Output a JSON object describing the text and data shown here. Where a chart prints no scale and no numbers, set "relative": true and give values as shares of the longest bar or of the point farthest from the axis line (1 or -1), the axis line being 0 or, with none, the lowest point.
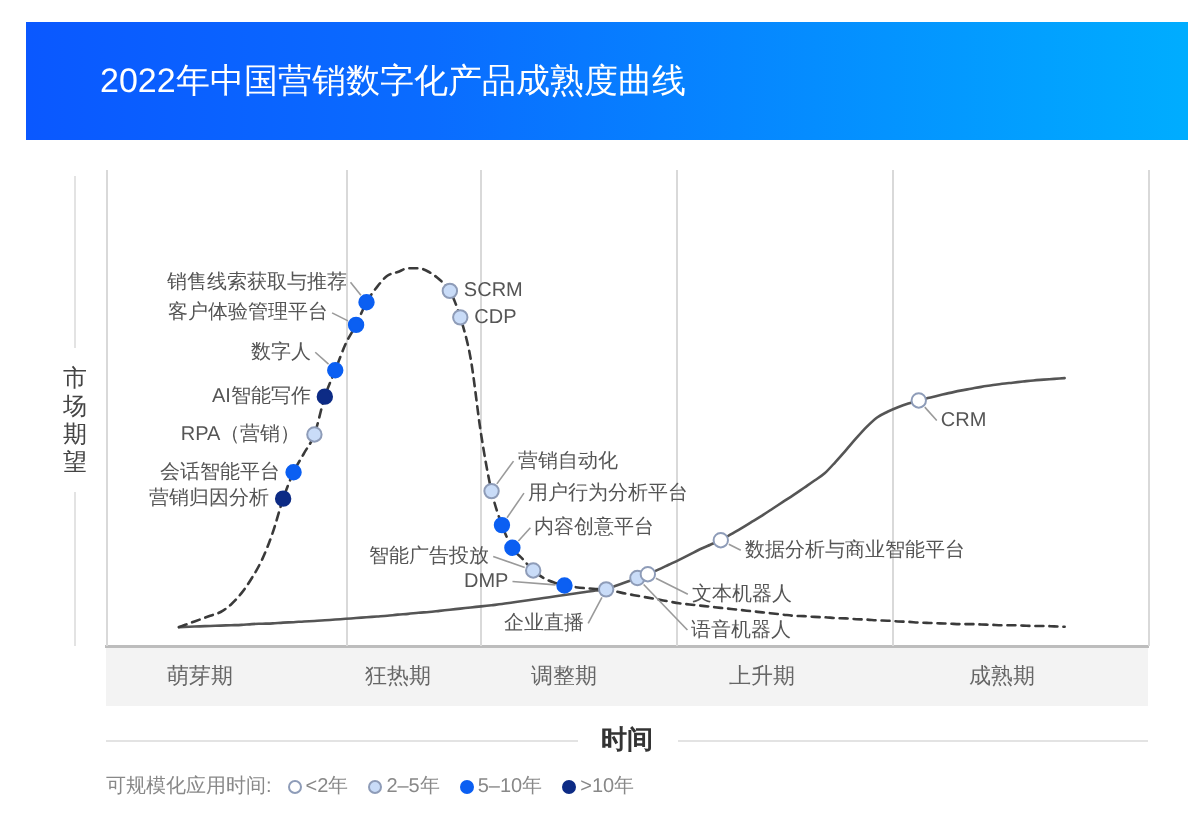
{
  "chart_data": {
    "type": "line",
    "title": "2022年中国营销数字化产品成熟度曲线",
    "xlabel": "时间",
    "ylabel": "市场期望",
    "legend_title": "可规模化应用时间:",
    "legend": "bottom left",
    "relative": true,
    "categories": [
      null,
      null,
      null,
      null,
      null,
      null,
      null,
      null,
      null,
      "萌芽期",
      null,
      null,
      null,
      null,
      null,
      null,
      null,
      null,
      null,
      null,
      null,
      null,
      null,
      null,
      null,
      null,
      null,
      null,
      "狂热期",
      null,
      null,
      null,
      null,
      null,
      null,
      null,
      null,
      null,
      null,
      null,
      null,
      null,
      null,
      null,
      "调整期",
      null,
      null,
      null,
      null,
      null,
      null,
      null,
      null,
      null,
      null,
      null,
      null,
      null,
      null,
      null,
      null,
      null,
      null,
      "上升期",
      null,
      null,
      null,
      null,
      null,
      null,
      null,
      null,
      null,
      null,
      null,
      null,
      null,
      null,
      null,
      null,
      null,
      null,
      null,
      null,
      null,
      null,
      "成熟期",
      null,
      null,
      null,
      null,
      null,
      null,
      null,
      null,
      null,
      null,
      null,
      null,
      null,
      null
    ],
    "series": [
      {
        "type": "line",
        "color": "#3a3a3a",
        "line_style": "dashed",
        "marker": "none",
        "values": [
          null,
          null,
          null,
          null,
          null,
          null,
          null,
          0.05,
          0.06,
          0.07,
          0.08,
          0.09,
          0.11,
          0.14,
          0.18,
          0.23,
          0.3,
          0.39,
          0.46,
          0.51,
          0.56,
          0.66,
          0.73,
          0.8,
          0.85,
          0.91,
          0.95,
          0.98,
          0.99,
          1.0,
          1.0,
          0.99,
          0.97,
          0.94,
          0.87,
          0.76,
          0.56,
          0.41,
          0.32,
          0.26,
          0.23,
          0.2,
          0.18,
          0.168,
          0.16,
          0.156,
          0.153,
          0.151,
          0.15,
          0.144,
          0.138,
          0.133,
          0.128,
          0.123,
          0.118,
          0.113,
          0.11,
          0.107,
          0.104,
          0.101,
          0.098,
          0.095,
          0.092,
          0.089,
          0.086,
          0.083,
          0.08,
          0.079,
          0.077,
          0.076,
          0.074,
          0.073,
          0.071,
          0.07,
          0.068,
          0.067,
          0.065,
          0.064,
          0.062,
          0.061,
          0.06,
          0.059,
          0.058,
          0.058,
          0.057,
          0.056,
          0.055,
          0.055,
          0.054,
          0.053,
          0.053,
          0.052,
          0.051,
          null,
          null,
          null,
          null,
          null,
          null,
          null,
          null
        ]
      },
      {
        "type": "line",
        "color": "#555555",
        "line_style": "solid",
        "marker": "none",
        "values": [
          null,
          null,
          null,
          null,
          null,
          null,
          null,
          0.05,
          0.051,
          0.052,
          0.053,
          0.054,
          0.055,
          0.056,
          0.058,
          0.059,
          0.06,
          0.062,
          0.063,
          0.065,
          0.066,
          0.068,
          0.07,
          0.072,
          0.074,
          0.076,
          0.078,
          0.08,
          0.083,
          0.085,
          0.088,
          0.09,
          0.093,
          0.096,
          0.099,
          0.102,
          0.105,
          0.108,
          0.111,
          0.115,
          0.119,
          0.123,
          0.127,
          0.131,
          0.135,
          0.139,
          0.143,
          0.147,
          0.15,
          0.16,
          0.17,
          0.18,
          0.19,
          0.202,
          0.215,
          0.228,
          0.242,
          0.256,
          0.268,
          0.28,
          0.296,
          0.312,
          0.329,
          0.346,
          0.364,
          0.382,
          0.4,
          0.419,
          0.438,
          0.458,
          0.487,
          0.518,
          0.55,
          0.58,
          0.605,
          0.62,
          0.632,
          0.642,
          0.65,
          0.657,
          0.664,
          0.67,
          0.676,
          0.681,
          0.686,
          0.69,
          0.694,
          0.697,
          0.7,
          0.703,
          0.705,
          0.707,
          0.709,
          null,
          null,
          null,
          null,
          null,
          null,
          null,
          null
        ]
      },
      {
        "type": "scatter",
        "name": "<2年",
        "color": "#ffffff",
        "marker": "circle",
        "values": [
          null,
          null,
          null,
          null,
          null,
          null,
          null,
          null,
          null,
          null,
          null,
          null,
          null,
          null,
          null,
          null,
          null,
          null,
          null,
          null,
          null,
          null,
          null,
          null,
          null,
          null,
          null,
          null,
          null,
          null,
          null,
          null,
          null,
          null,
          null,
          null,
          null,
          null,
          null,
          null,
          null,
          null,
          null,
          null,
          null,
          null,
          null,
          null,
          null,
          null,
          null,
          null,
          0.19,
          null,
          null,
          null,
          null,
          null,
          null,
          0.28,
          null,
          null,
          null,
          null,
          null,
          null,
          null,
          null,
          null,
          null,
          null,
          null,
          null,
          null,
          null,
          null,
          null,
          null,
          0.65,
          null,
          null,
          null,
          null,
          null,
          null,
          null,
          null,
          null,
          null,
          null,
          null,
          null,
          null,
          null,
          null,
          null,
          null,
          null,
          null,
          null,
          null
        ]
      },
      {
        "type": "scatter",
        "name": "2–5年",
        "color": "#c9dcf8",
        "marker": "circle",
        "values": [
          null,
          null,
          null,
          null,
          null,
          null,
          null,
          null,
          null,
          null,
          null,
          null,
          null,
          null,
          null,
          null,
          null,
          null,
          null,
          null,
          0.56,
          null,
          null,
          null,
          null,
          null,
          null,
          null,
          null,
          null,
          null,
          null,
          null,
          0.94,
          0.87,
          null,
          null,
          0.41,
          null,
          null,
          null,
          0.2,
          null,
          null,
          null,
          null,
          null,
          null,
          0.15,
          null,
          null,
          0.18,
          null,
          null,
          null,
          null,
          null,
          null,
          null,
          null,
          null,
          null,
          null,
          null,
          null,
          null,
          null,
          null,
          null,
          null,
          null,
          null,
          null,
          null,
          null,
          null,
          null,
          null,
          null,
          null,
          null,
          null,
          null,
          null,
          null,
          null,
          null,
          null,
          null,
          null,
          null,
          null,
          null,
          null,
          null,
          null,
          null,
          null,
          null,
          null,
          null
        ]
      },
      {
        "type": "scatter",
        "name": "5–10年",
        "color": "#0b5ff2",
        "marker": "circle",
        "values": [
          null,
          null,
          null,
          null,
          null,
          null,
          null,
          null,
          null,
          null,
          null,
          null,
          null,
          null,
          null,
          null,
          null,
          null,
          0.46,
          null,
          null,
          null,
          0.73,
          null,
          0.85,
          0.91,
          null,
          null,
          null,
          null,
          null,
          null,
          null,
          null,
          null,
          null,
          null,
          null,
          0.32,
          0.26,
          null,
          null,
          null,
          null,
          0.16,
          null,
          null,
          null,
          null,
          null,
          null,
          null,
          null,
          null,
          null,
          null,
          null,
          null,
          null,
          null,
          null,
          null,
          null,
          null,
          null,
          null,
          null,
          null,
          null,
          null,
          null,
          null,
          null,
          null,
          null,
          null,
          null,
          null,
          null,
          null,
          null,
          null,
          null,
          null,
          null,
          null,
          null,
          null,
          null,
          null,
          null,
          null,
          null,
          null,
          null,
          null,
          null,
          null,
          null,
          null,
          null
        ]
      },
      {
        "type": "scatter",
        "name": ">10年",
        "color": "#0d2b85",
        "marker": "circle",
        "values": [
          null,
          null,
          null,
          null,
          null,
          null,
          null,
          null,
          null,
          null,
          null,
          null,
          null,
          null,
          null,
          null,
          null,
          0.39,
          null,
          null,
          null,
          0.66,
          null,
          null,
          null,
          null,
          null,
          null,
          null,
          null,
          null,
          null,
          null,
          null,
          null,
          null,
          null,
          null,
          null,
          null,
          null,
          null,
          null,
          null,
          null,
          null,
          null,
          null,
          null,
          null,
          null,
          null,
          null,
          null,
          null,
          null,
          null,
          null,
          null,
          null,
          null,
          null,
          null,
          null,
          null,
          null,
          null,
          null,
          null,
          null,
          null,
          null,
          null,
          null,
          null,
          null,
          null,
          null,
          null,
          null,
          null,
          null,
          null,
          null,
          null,
          null,
          null,
          null,
          null,
          null,
          null,
          null,
          null,
          null,
          null,
          null,
          null,
          null,
          null,
          null,
          null
        ]
      }
    ],
    "annotations": [
      "文本机器人",
      "数据分析与商业智能平台",
      "CRM",
      "RPA（营销）",
      "SCRM",
      "CDP",
      "营销自动化",
      "智能广告投放",
      "企业直播",
      "语音机器人",
      "会话智能平台",
      "数字人",
      "客户体验管理平台",
      "销售线索获取与推荐",
      "用户行为分析平台",
      "内容创意平台",
      "DMP",
      "营销归因分析",
      "AI智能写作"
    ]
  }
}
